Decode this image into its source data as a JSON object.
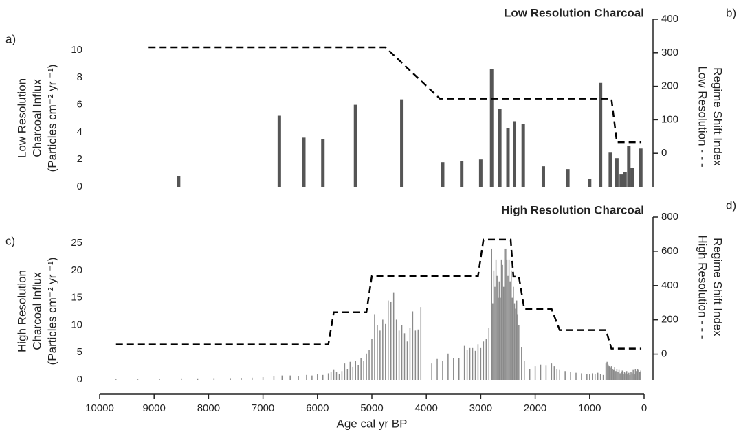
{
  "chart_data": [
    {
      "type": "bar",
      "title": "Low Resolution Charcoal",
      "panel_label": "a)",
      "right_panel_label": "b)",
      "ylabel": [
        "Low Resolution",
        "Charcoal Influx",
        "(Particles cm⁻² yr ⁻¹)"
      ],
      "y2label": [
        "Regime Shift Index",
        "Low Resolution - - -"
      ],
      "xlim": [
        10000,
        0
      ],
      "ylim": [
        0,
        10
      ],
      "yticks": [
        0,
        2,
        4,
        6,
        8,
        10
      ],
      "y2lim": [
        -100,
        400
      ],
      "y2ticks": [
        0,
        100,
        200,
        300,
        400
      ],
      "bars": {
        "color": "#555555",
        "x": [
          8550,
          6700,
          6250,
          5900,
          5300,
          4450,
          3700,
          3350,
          3000,
          2800,
          2650,
          2500,
          2380,
          2220,
          1850,
          1400,
          1000,
          800,
          620,
          500,
          420,
          350,
          280,
          220,
          60
        ],
        "values": [
          0.8,
          5.2,
          3.6,
          3.5,
          6.0,
          6.4,
          1.8,
          1.9,
          2.0,
          8.6,
          5.7,
          4.3,
          4.8,
          4.6,
          1.5,
          1.3,
          0.6,
          7.6,
          2.5,
          2.1,
          0.9,
          1.1,
          3.0,
          1.4,
          2.8
        ]
      },
      "regime": {
        "color": "#000000",
        "axis": "y2",
        "x": [
          9100,
          4750,
          3750,
          600,
          500,
          50
        ],
        "values": [
          316,
          316,
          163,
          163,
          33,
          33
        ]
      }
    },
    {
      "type": "bar",
      "title": "High Resolution Charcoal",
      "panel_label": "c)",
      "right_panel_label": "d)",
      "ylabel": [
        "High Resolution",
        "Charcoal Influx",
        "(Particles cm⁻² yr ⁻¹)"
      ],
      "y2label": [
        "Regime Shift Index",
        "High Resolution - - -"
      ],
      "xlabel": "Age cal yr BP",
      "xlim": [
        10000,
        0
      ],
      "xticks": [
        10000,
        9000,
        8000,
        7000,
        6000,
        5000,
        4000,
        3000,
        2000,
        1000,
        0
      ],
      "ylim": [
        0,
        25
      ],
      "yticks": [
        0,
        5,
        10,
        15,
        20,
        25
      ],
      "y2lim": [
        -150,
        800
      ],
      "y2ticks": [
        0,
        200,
        400,
        600,
        800
      ],
      "bars": {
        "color": "#8a8a8a",
        "x": [
          9700,
          9300,
          8900,
          8500,
          8200,
          7900,
          7600,
          7400,
          7200,
          7000,
          6800,
          6650,
          6500,
          6350,
          6200,
          6100,
          6000,
          5900,
          5800,
          5750,
          5700,
          5650,
          5600,
          5550,
          5500,
          5450,
          5400,
          5350,
          5300,
          5250,
          5200,
          5150,
          5100,
          5050,
          5000,
          4950,
          4900,
          4850,
          4800,
          4750,
          4700,
          4650,
          4600,
          4550,
          4500,
          4450,
          4400,
          4350,
          4300,
          4250,
          4200,
          4150,
          4100,
          3900,
          3800,
          3700,
          3600,
          3500,
          3400,
          3300,
          3250,
          3200,
          3150,
          3100,
          3050,
          3000,
          2950,
          2900,
          2850,
          2800,
          2780,
          2760,
          2740,
          2720,
          2700,
          2680,
          2660,
          2640,
          2620,
          2600,
          2580,
          2560,
          2540,
          2520,
          2500,
          2480,
          2460,
          2440,
          2420,
          2400,
          2380,
          2360,
          2340,
          2320,
          2300,
          2250,
          2200,
          2100,
          2000,
          1900,
          1800,
          1700,
          1650,
          1600,
          1550,
          1450,
          1350,
          1250,
          1150,
          1050,
          1000,
          950,
          900,
          850,
          800,
          750,
          700,
          680,
          660,
          640,
          620,
          600,
          580,
          560,
          540,
          520,
          500,
          480,
          460,
          440,
          420,
          400,
          380,
          360,
          340,
          320,
          300,
          280,
          260,
          240,
          220,
          200,
          180,
          160,
          140,
          120,
          100,
          80,
          60
        ],
        "values": [
          0.1,
          0.1,
          0.1,
          0.15,
          0.15,
          0.2,
          0.2,
          0.3,
          0.4,
          0.5,
          0.7,
          0.8,
          0.8,
          0.7,
          0.9,
          0.8,
          1.0,
          0.9,
          1.2,
          1.5,
          1.8,
          1.5,
          1.1,
          1.6,
          3.0,
          2.0,
          3.3,
          2.4,
          3.5,
          2.7,
          4.0,
          3.5,
          4.8,
          5.5,
          7.5,
          12.0,
          10.0,
          9.0,
          11.0,
          10.2,
          14.5,
          14.2,
          16.0,
          11.0,
          9.0,
          10.0,
          8.5,
          7.0,
          9.5,
          12.5,
          9.0,
          9.2,
          13.3,
          3.0,
          3.8,
          3.5,
          4.8,
          4.0,
          4.0,
          6.2,
          5.5,
          5.8,
          5.8,
          5.3,
          6.5,
          5.8,
          7.0,
          7.5,
          9.5,
          24.0,
          14.0,
          20.0,
          17.0,
          22.0,
          19.0,
          15.0,
          18.0,
          15.0,
          22.0,
          21.0,
          17.0,
          24.0,
          24.0,
          22.0,
          19.0,
          22.0,
          18.0,
          20.0,
          15.0,
          17.0,
          14.0,
          13.0,
          14.5,
          12.0,
          10.0,
          6.0,
          3.5,
          2.0,
          2.5,
          2.8,
          2.6,
          3.0,
          2.5,
          2.0,
          1.8,
          1.6,
          1.5,
          1.3,
          1.2,
          1.1,
          1.0,
          1.2,
          1.0,
          1.3,
          1.1,
          0.9,
          3.0,
          3.3,
          2.8,
          2.5,
          2.2,
          2.5,
          2.0,
          1.8,
          2.3,
          1.6,
          2.0,
          1.5,
          1.8,
          1.2,
          1.5,
          1.7,
          1.0,
          1.4,
          1.2,
          1.6,
          1.0,
          1.3,
          0.9,
          1.5,
          1.2,
          1.8,
          1.0,
          2.0,
          1.6,
          2.0,
          1.8,
          1.5,
          1.7
        ]
      },
      "regime": {
        "color": "#000000",
        "axis": "y2",
        "x": [
          9700,
          5800,
          5700,
          5100,
          5000,
          3050,
          2950,
          2450,
          2400,
          2300,
          2200,
          1700,
          1550,
          700,
          600,
          50
        ],
        "values": [
          56,
          56,
          244,
          244,
          456,
          456,
          668,
          668,
          452,
          452,
          264,
          264,
          140,
          140,
          32,
          32
        ]
      }
    }
  ]
}
